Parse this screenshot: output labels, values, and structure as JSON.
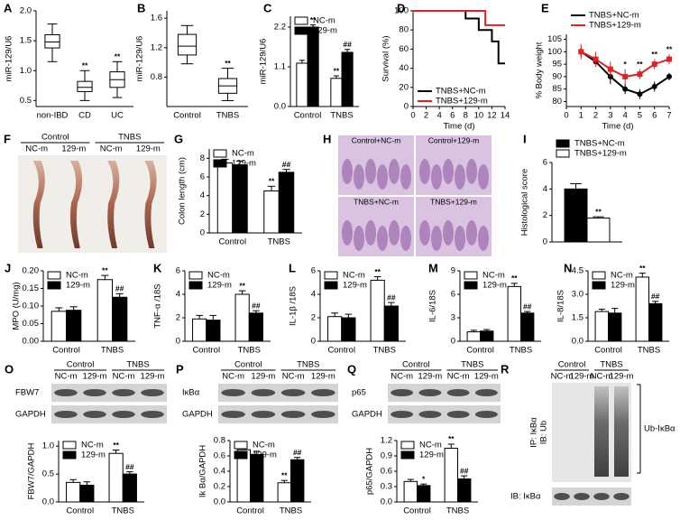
{
  "chart_data": [
    {
      "type": "box",
      "panel": "A",
      "ylabel": "miR-129/U6",
      "categories": [
        "non-IBD",
        "CD",
        "UC"
      ],
      "boxes": [
        {
          "min": 1.15,
          "q1": 1.38,
          "median": 1.48,
          "q3": 1.6,
          "max": 1.78,
          "sig": null
        },
        {
          "min": 0.5,
          "q1": 0.65,
          "median": 0.72,
          "q3": 0.82,
          "max": 1.0,
          "sig": "**"
        },
        {
          "min": 0.55,
          "q1": 0.72,
          "median": 0.85,
          "q3": 0.98,
          "max": 1.15,
          "sig": "**"
        }
      ],
      "ylim": [
        0.4,
        2.0
      ],
      "yticks": [
        {
          "value": 0.5,
          "label": "0.5"
        },
        {
          "value": 1.0,
          "label": "1.0"
        },
        {
          "value": 1.5,
          "label": "1.5"
        },
        {
          "value": 2.0,
          "label": "2.0"
        }
      ]
    },
    {
      "type": "box",
      "panel": "B",
      "ylabel": "miR-129/U6",
      "categories": [
        "Control",
        "TNBS"
      ],
      "boxes": [
        {
          "min": 0.98,
          "q1": 1.1,
          "median": 1.22,
          "q3": 1.38,
          "max": 1.5,
          "sig": null
        },
        {
          "min": 0.48,
          "q1": 0.58,
          "median": 0.68,
          "q3": 0.78,
          "max": 0.92,
          "sig": "**"
        }
      ],
      "ylim": [
        0.4,
        1.7
      ],
      "yticks": [
        {
          "value": 0.8,
          "label": "0.8"
        },
        {
          "value": 1.2,
          "label": "1.2"
        },
        {
          "value": 1.6,
          "label": "1.6"
        }
      ]
    },
    {
      "type": "bar",
      "panel": "C",
      "ylabel": "miR-129/U6",
      "categories": [
        "Control",
        "TNBS"
      ],
      "legend": "upper left",
      "ylim": [
        0,
        2.5
      ],
      "yticks": [
        {
          "value": 0,
          "label": "0.0"
        },
        {
          "value": 1.1,
          "label": "1.1"
        },
        {
          "value": 2.2,
          "label": "2.2"
        }
      ],
      "series": [
        {
          "name": "NC-m",
          "color": "#ffffff",
          "values": [
            1.2,
            0.78
          ],
          "errors": [
            0.08,
            0.07
          ],
          "sig": [
            null,
            "**"
          ]
        },
        {
          "name": "129-m",
          "color": "#000000",
          "values": [
            2.2,
            1.5
          ],
          "errors": [
            0.06,
            0.08
          ],
          "sig": [
            "**",
            "##"
          ]
        }
      ]
    },
    {
      "type": "line",
      "panel": "D",
      "ylabel": "Survival (%)",
      "xlabel": "Time (d)",
      "legend": "lower left",
      "xlim": [
        0,
        14
      ],
      "xticks": [
        0,
        2,
        4,
        6,
        8,
        10,
        12,
        14
      ],
      "ylim": [
        0,
        100
      ],
      "yticks": [
        0,
        20,
        40,
        60,
        80,
        100
      ],
      "series": [
        {
          "name": "TNBS+NC-m",
          "color": "#000000",
          "x": [
            0,
            8,
            8,
            10,
            10,
            12,
            12,
            13,
            13,
            14
          ],
          "values": [
            100,
            100,
            92,
            92,
            80,
            80,
            68,
            68,
            45,
            45
          ]
        },
        {
          "name": "TNBS+129-m",
          "color": "#e02020",
          "x": [
            0,
            11,
            11,
            14
          ],
          "values": [
            100,
            100,
            85,
            85
          ]
        }
      ]
    },
    {
      "type": "line",
      "panel": "E",
      "ylabel": "% Body weight",
      "xlabel": "Time (d)",
      "legend": "above",
      "xlim": [
        0,
        7
      ],
      "xticks": [
        0,
        1,
        2,
        3,
        4,
        5,
        6,
        7
      ],
      "ylim": [
        78,
        107
      ],
      "yticks": [
        80,
        85,
        90,
        95,
        100,
        105
      ],
      "series": [
        {
          "name": "TNBS+NC-m",
          "color": "#000000",
          "marker": "circle",
          "x": [
            1,
            2,
            3,
            4,
            5,
            6,
            7
          ],
          "values": [
            100,
            96,
            90,
            85,
            83,
            86,
            90
          ],
          "errors": [
            2,
            2,
            3,
            2,
            2,
            2,
            1.5
          ]
        },
        {
          "name": "TNBS+129-m",
          "color": "#d62728",
          "marker": "square",
          "x": [
            1,
            2,
            3,
            4,
            5,
            6,
            7
          ],
          "values": [
            100,
            97,
            93,
            90,
            91,
            95,
            97
          ],
          "errors": [
            3,
            3,
            3,
            3,
            2,
            2,
            2
          ],
          "sig": [
            null,
            null,
            null,
            "*",
            "**",
            "**",
            "**"
          ]
        }
      ]
    },
    {
      "type": "bar",
      "panel": "G",
      "ylabel": "Colon length (cm)",
      "categories": [
        "Control",
        "TNBS"
      ],
      "legend": "upper left",
      "ylim": [
        0,
        9
      ],
      "yticks": [
        0,
        2,
        4,
        6,
        8
      ],
      "series": [
        {
          "name": "NC-m",
          "color": "#ffffff",
          "values": [
            7.5,
            4.5
          ],
          "errors": [
            0.4,
            0.5
          ],
          "sig": [
            null,
            "**"
          ]
        },
        {
          "name": "129-m",
          "color": "#000000",
          "values": [
            7.3,
            6.5
          ],
          "errors": [
            0.4,
            0.3
          ],
          "sig": [
            null,
            "##"
          ]
        }
      ]
    },
    {
      "type": "bar",
      "panel": "I",
      "ylabel": "Histological score",
      "categories": [
        null
      ],
      "legend": "above",
      "ylim": [
        0,
        6
      ],
      "yticks": [
        0,
        2,
        4,
        6
      ],
      "series": [
        {
          "name": "TNBS+NC-m",
          "color": "#000000",
          "values": [
            4.0
          ],
          "errors": [
            0.4
          ],
          "sig": [
            null
          ]
        },
        {
          "name": "TNBS+129-m",
          "color": "#ffffff",
          "values": [
            1.8
          ],
          "errors": [
            0.1
          ],
          "sig": [
            "**"
          ]
        }
      ]
    },
    {
      "type": "bar",
      "panel": "J",
      "ylabel": "MPO (U/mg)",
      "categories": [
        "Control",
        "TNBS"
      ],
      "legend": "upper left",
      "ylim": [
        0,
        0.2
      ],
      "yticks": [
        {
          "value": 0,
          "label": "0.00"
        },
        {
          "value": 0.05,
          "label": "0.05"
        },
        {
          "value": 0.1,
          "label": "0.10"
        },
        {
          "value": 0.15,
          "label": "0.15"
        },
        {
          "value": 0.2,
          "label": "0.20"
        }
      ],
      "series": [
        {
          "name": "NC-m",
          "color": "#ffffff",
          "values": [
            0.085,
            0.175
          ],
          "errors": [
            0.01,
            0.012
          ],
          "sig": [
            null,
            "**"
          ]
        },
        {
          "name": "129-m",
          "color": "#000000",
          "values": [
            0.088,
            0.125
          ],
          "errors": [
            0.01,
            0.01
          ],
          "sig": [
            null,
            "##"
          ]
        }
      ]
    },
    {
      "type": "bar",
      "panel": "K",
      "ylabel": "TNF-α /18S",
      "categories": [
        "Control",
        "TNBS"
      ],
      "legend": "upper left",
      "ylim": [
        0,
        6
      ],
      "yticks": [
        0,
        2,
        4,
        6
      ],
      "series": [
        {
          "name": "NC-m",
          "color": "#ffffff",
          "values": [
            1.9,
            4.0
          ],
          "errors": [
            0.3,
            0.3
          ],
          "sig": [
            null,
            "**"
          ]
        },
        {
          "name": "129-m",
          "color": "#000000",
          "values": [
            1.8,
            2.4
          ],
          "errors": [
            0.4,
            0.2
          ],
          "sig": [
            null,
            "##"
          ]
        }
      ]
    },
    {
      "type": "bar",
      "panel": "L",
      "ylabel": "IL-1β /18S",
      "categories": [
        "Control",
        "TNBS"
      ],
      "legend": "upper left",
      "ylim": [
        0,
        6
      ],
      "yticks": [
        0,
        2,
        4,
        6
      ],
      "series": [
        {
          "name": "NC-m",
          "color": "#ffffff",
          "values": [
            2.1,
            5.2
          ],
          "errors": [
            0.3,
            0.3
          ],
          "sig": [
            null,
            "**"
          ]
        },
        {
          "name": "129-m",
          "color": "#000000",
          "values": [
            2.0,
            3.0
          ],
          "errors": [
            0.3,
            0.3
          ],
          "sig": [
            null,
            "##"
          ]
        }
      ]
    },
    {
      "type": "bar",
      "panel": "M",
      "ylabel": "IL-6/18S",
      "categories": [
        "Control",
        "TNBS"
      ],
      "legend": "upper left",
      "ylim": [
        0,
        9
      ],
      "yticks": [
        0,
        3,
        6,
        9
      ],
      "series": [
        {
          "name": "NC-m",
          "color": "#ffffff",
          "values": [
            1.2,
            7.0
          ],
          "errors": [
            0.2,
            0.4
          ],
          "sig": [
            null,
            "**"
          ]
        },
        {
          "name": "129-m",
          "color": "#000000",
          "values": [
            1.3,
            3.6
          ],
          "errors": [
            0.2,
            0.2
          ],
          "sig": [
            null,
            "##"
          ]
        }
      ]
    },
    {
      "type": "bar",
      "panel": "N",
      "ylabel": "IL-8/18S",
      "categories": [
        "Control",
        "TNBS"
      ],
      "legend": "upper left",
      "ylim": [
        0,
        4.5
      ],
      "yticks": [
        {
          "value": 0,
          "label": "0.0"
        },
        {
          "value": 1.5,
          "label": "1.5"
        },
        {
          "value": 3.0,
          "label": "3.0"
        },
        {
          "value": 4.5,
          "label": "4.5"
        }
      ],
      "series": [
        {
          "name": "NC-m",
          "color": "#ffffff",
          "values": [
            1.9,
            4.1
          ],
          "errors": [
            0.15,
            0.25
          ],
          "sig": [
            null,
            "**"
          ]
        },
        {
          "name": "129-m",
          "color": "#000000",
          "values": [
            1.8,
            2.4
          ],
          "errors": [
            0.3,
            0.15
          ],
          "sig": [
            null,
            "##"
          ]
        }
      ]
    },
    {
      "type": "bar",
      "panel": "O",
      "ylabel": "FBW7/GAPDH",
      "categories": [
        "Control",
        "TNBS"
      ],
      "legend": "upper left",
      "ylim": [
        0,
        1.1
      ],
      "yticks": [
        {
          "value": 0,
          "label": "0.0"
        },
        {
          "value": 0.5,
          "label": "0.5"
        },
        {
          "value": 1.0,
          "label": "1.0"
        }
      ],
      "series": [
        {
          "name": "NC-m",
          "color": "#ffffff",
          "values": [
            0.35,
            0.87
          ],
          "errors": [
            0.05,
            0.06
          ],
          "sig": [
            null,
            "**"
          ]
        },
        {
          "name": "129-m",
          "color": "#000000",
          "values": [
            0.3,
            0.5
          ],
          "errors": [
            0.06,
            0.04
          ],
          "sig": [
            null,
            "##"
          ]
        }
      ]
    },
    {
      "type": "bar",
      "panel": "P",
      "ylabel": "Ik Bα/GAPDH",
      "categories": [
        "Control",
        "TNBS"
      ],
      "legend": "upper left",
      "ylim": [
        0,
        0.8
      ],
      "yticks": [
        {
          "value": 0,
          "label": "0.0"
        },
        0.2,
        0.4,
        0.6,
        0.8
      ],
      "series": [
        {
          "name": "NC-m",
          "color": "#ffffff",
          "values": [
            0.68,
            0.25
          ],
          "errors": [
            0.05,
            0.03
          ],
          "sig": [
            null,
            "**"
          ]
        },
        {
          "name": "129-m",
          "color": "#000000",
          "values": [
            0.62,
            0.55
          ],
          "errors": [
            0.04,
            0.03
          ],
          "sig": [
            null,
            "##"
          ]
        }
      ]
    },
    {
      "type": "bar",
      "panel": "Q",
      "ylabel": "p65/GAPDH",
      "categories": [
        "Control",
        "TNBS"
      ],
      "legend": "upper left",
      "ylim": [
        0,
        1.2
      ],
      "yticks": [
        {
          "value": 0,
          "label": "0.0"
        },
        0.3,
        0.6,
        0.9,
        1.2
      ],
      "series": [
        {
          "name": "NC-m",
          "color": "#ffffff",
          "values": [
            0.4,
            1.05
          ],
          "errors": [
            0.04,
            0.08
          ],
          "sig": [
            null,
            "**"
          ]
        },
        {
          "name": "129-m",
          "color": "#000000",
          "values": [
            0.32,
            0.45
          ],
          "errors": [
            0.03,
            0.06
          ],
          "sig": [
            "*",
            "##"
          ]
        }
      ]
    }
  ],
  "figure_panels": [
    {
      "panel": "F",
      "group_labels": [
        "Control",
        "TNBS"
      ],
      "lane_labels": [
        "NC-m",
        "129-m",
        "NC-m",
        "129-m"
      ]
    },
    {
      "panel": "H",
      "labels": [
        "Control+NC-m",
        "Control+129-m",
        "TNBS+NC-m",
        "TNBS+129-m"
      ]
    },
    {
      "group_labels": [
        "Control",
        "TNBS"
      ],
      "lane_labels": [
        "NC-m",
        "129-m",
        "NC-m",
        "129-m"
      ],
      "bands": [
        "FBW7",
        "GAPDH"
      ]
    },
    {
      "group_labels": [
        "Control",
        "TNBS"
      ],
      "lane_labels": [
        "NC-m",
        "129-m",
        "NC-m",
        "129-m"
      ],
      "bands": [
        "IκBα",
        "GAPDH"
      ]
    },
    {
      "group_labels": [
        "Control",
        "TNBS"
      ],
      "lane_labels": [
        "NC-m",
        "129-m",
        "NC-m",
        "129-m"
      ],
      "bands": [
        "p65",
        "GAPDH"
      ]
    },
    {
      "panel": "R",
      "group_labels": [
        "Control",
        "TNBS"
      ],
      "lane_labels": [
        "NC-m",
        "129-m",
        "NC-m",
        "129-m"
      ],
      "ip_labels": [
        "IP: IκBα",
        "IB: Ub"
      ],
      "band_label": "Ub-IκBα",
      "bottom_label": "IB: IκBα"
    }
  ]
}
